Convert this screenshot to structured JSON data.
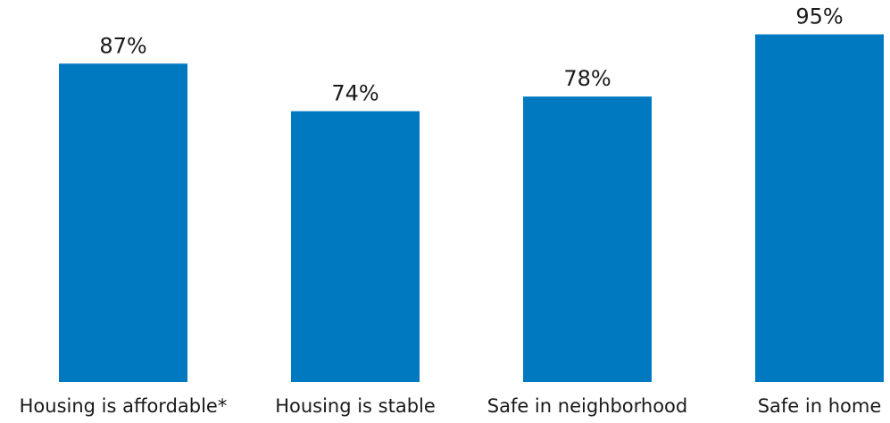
{
  "chart_data": {
    "type": "bar",
    "categories": [
      "Housing is affordable*",
      "Housing is stable",
      "Safe in neighborhood",
      "Safe in home"
    ],
    "values": [
      87,
      74,
      78,
      95
    ],
    "data_labels": [
      "87%",
      "74%",
      "78%",
      "95%"
    ],
    "unit": "%",
    "ylim": [
      0,
      100
    ],
    "title": "",
    "xlabel": "",
    "ylabel": "",
    "grid": false,
    "legend": "none",
    "bar_color": "#0079C1"
  }
}
